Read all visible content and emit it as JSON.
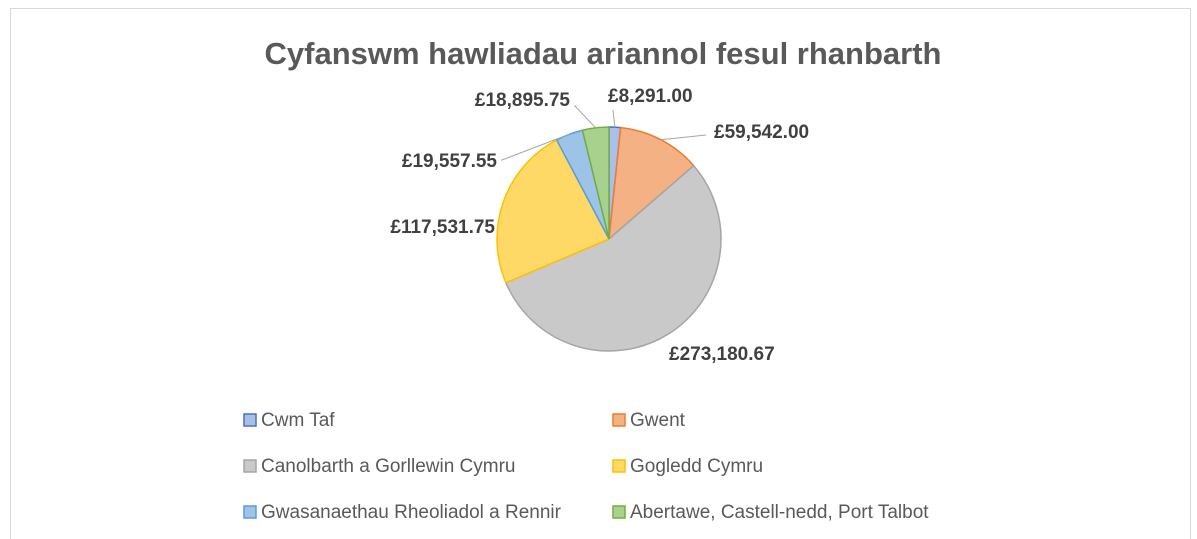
{
  "chart_data": {
    "type": "pie",
    "title": "Cyfanswm hawliadau ariannol fesul rhanbarth",
    "categories": [
      "Cwm Taf",
      "Gwent",
      "Canolbarth a Gorllewin Cymru",
      "Gogledd Cymru",
      "Gwasanaethau Rheoliadol a Rennir",
      "Abertawe, Castell-nedd, Port Talbot"
    ],
    "values": [
      8291,
      59542,
      273180.67,
      117531.75,
      19557.55,
      18895.75
    ],
    "value_labels": [
      "£8,291.00",
      "£59,542.00",
      "£273,180.67",
      "£117,531.75",
      "£19,557.55",
      "£18,895.75"
    ],
    "colors": [
      "#4472c4",
      "#ed7d31",
      "#a5a5a5",
      "#ffc000",
      "#5b9bd5",
      "#70ad47"
    ],
    "fill_colors": [
      "#a9bfe6",
      "#f4b183",
      "#c9c9c9",
      "#ffd966",
      "#9dc3e6",
      "#a9d18e"
    ],
    "legend": "bottom"
  }
}
